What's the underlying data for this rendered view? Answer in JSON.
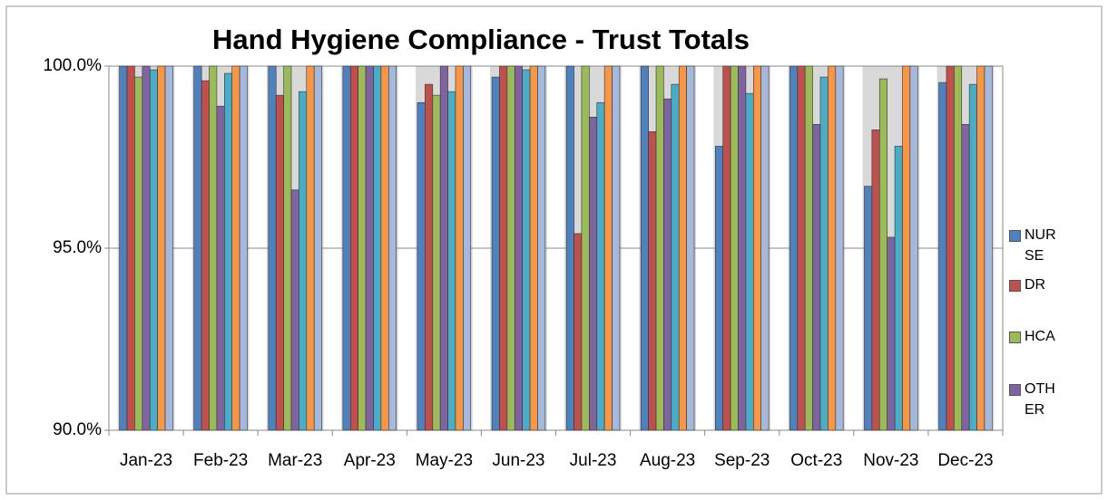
{
  "chart_data": {
    "type": "bar",
    "title": "Hand Hygiene Compliance - Trust Totals",
    "categories": [
      "Jan-23",
      "Feb-23",
      "Mar-23",
      "Apr-23",
      "May-23",
      "Jun-23",
      "Jul-23",
      "Aug-23",
      "Sep-23",
      "Oct-23",
      "Nov-23",
      "Dec-23"
    ],
    "series": [
      {
        "name": "NURSE",
        "color": "#4f81bd",
        "values": [
          100,
          100,
          100,
          100,
          99.0,
          99.7,
          100,
          100,
          97.8,
          100,
          96.7,
          99.55
        ]
      },
      {
        "name": "DR",
        "color": "#c0504d",
        "values": [
          100,
          99.6,
          99.2,
          100,
          99.5,
          100,
          95.4,
          98.2,
          100,
          100,
          98.25,
          100
        ]
      },
      {
        "name": "HCA",
        "color": "#9bbb59",
        "values": [
          99.7,
          100,
          100,
          100,
          99.2,
          100,
          100,
          100,
          100,
          100,
          99.65,
          100
        ]
      },
      {
        "name": "OTHER",
        "color": "#8064a2",
        "values": [
          100,
          98.9,
          96.6,
          100,
          100,
          100,
          98.6,
          99.1,
          100,
          98.4,
          95.3,
          98.4
        ]
      },
      {
        "color": "#4bacc6",
        "values": [
          99.9,
          99.8,
          99.3,
          100,
          99.3,
          99.9,
          99.0,
          99.5,
          99.25,
          99.7,
          97.8,
          99.5
        ]
      },
      {
        "color": "#f79646",
        "values": [
          100,
          100,
          100,
          100,
          100,
          100,
          100,
          100,
          100,
          100,
          100,
          100
        ]
      },
      {
        "color": "#a5b9dc",
        "values": [
          100,
          100,
          100,
          100,
          100,
          100,
          100,
          100,
          100,
          100,
          100,
          100
        ]
      }
    ],
    "ylim": [
      90,
      100
    ],
    "yticks": [
      {
        "value": 90,
        "label": "90.0%"
      },
      {
        "value": 95,
        "label": "95.0%"
      },
      {
        "value": 100,
        "label": "100.0%"
      }
    ],
    "grid": true,
    "legend": "right"
  }
}
